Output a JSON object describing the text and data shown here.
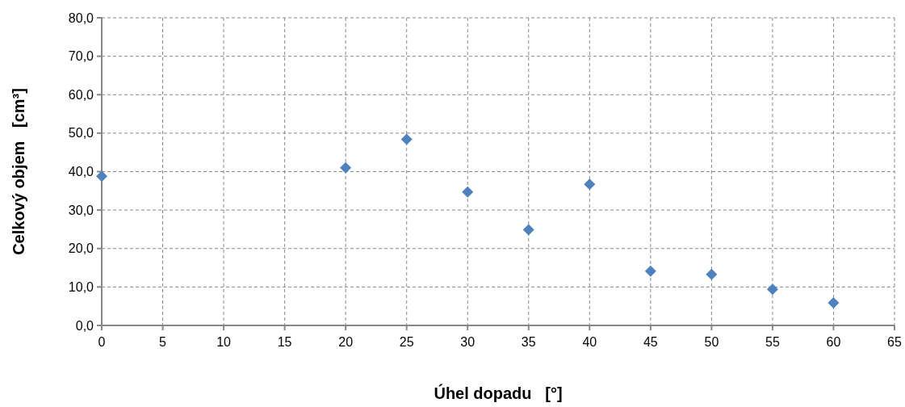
{
  "chart_data": {
    "type": "scatter",
    "xlabel": "Úhel dopadu   [°]",
    "ylabel": "Celkový objem   [cm³]",
    "x": [
      0,
      20,
      25,
      30,
      35,
      40,
      45,
      50,
      55,
      60
    ],
    "series": [
      {
        "color": "#4f81bd",
        "values": [
          38.8,
          41.0,
          48.4,
          34.7,
          24.9,
          36.7,
          14.1,
          13.3,
          9.4,
          5.9
        ]
      }
    ],
    "xlim": [
      0,
      65
    ],
    "xticks": [
      0,
      5,
      10,
      15,
      20,
      25,
      30,
      35,
      40,
      45,
      50,
      55,
      60,
      65
    ],
    "ylim": [
      0,
      80
    ],
    "yticks": [
      {
        "value": 0,
        "label": "0,0"
      },
      {
        "value": 10,
        "label": "10,0"
      },
      {
        "value": 20,
        "label": "20,0"
      },
      {
        "value": 30,
        "label": "30,0"
      },
      {
        "value": 40,
        "label": "40,0"
      },
      {
        "value": 50,
        "label": "50,0"
      },
      {
        "value": 60,
        "label": "60,0"
      },
      {
        "value": 70,
        "label": "70,0"
      },
      {
        "value": 80,
        "label": "80,0"
      }
    ],
    "grid": true,
    "marker": "diamond"
  }
}
